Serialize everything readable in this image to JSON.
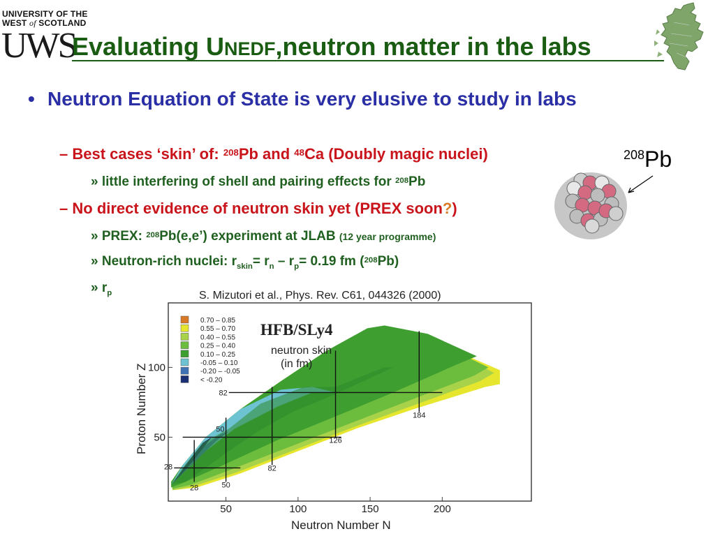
{
  "logo": {
    "line1": "UNIVERSITY OF THE",
    "line2_a": "WEST ",
    "line2_of": "of",
    "line2_b": " SCOTLAND",
    "mark": "UWS"
  },
  "title": "Evaluating U",
  "title_small": "NEDF",
  "title_rest": ",neutron matter in the labs",
  "bullets": {
    "b1": "Neutron Equation of State is very elusive to study in labs",
    "b2_dash": "–",
    "b2_a": "Best cases ‘skin’ of: ",
    "b2_sup1": "208",
    "b2_b": "Pb and ",
    "b2_sup2": "48",
    "b2_c": "Ca (Doubly magic nuclei)",
    "b3_mark": "»",
    "b3_a": "little interfering of shell and pairing effects for ",
    "b3_sup": "208",
    "b3_b": "Pb",
    "b4_dash": "–",
    "b4_a": "No direct evidence of neutron skin yet (PREX soon",
    "b4_q": "?",
    "b4_b": ")",
    "b5_mark": "»",
    "b5_a": "PREX: ",
    "b5_sup": "208",
    "b5_b": "Pb(e,e’) experiment at JLAB ",
    "b5_small": "(12 year programme)",
    "b6_mark": "»",
    "b6_a": "Neutron-rich nuclei: r",
    "b6_sub1": "skin",
    "b6_b": "= r",
    "b6_sub2": "n",
    "b6_c": " – r",
    "b6_sub3": "p",
    "b6_d": "= 0.19 fm (",
    "b6_sup": "208",
    "b6_e": "Pb)",
    "b7_mark": "»",
    "b7_a": "r",
    "b7_sub": "p"
  },
  "pb_label_sup": "208",
  "pb_label": "Pb",
  "figure": {
    "citation": "S. Mizutori et al., Phys. Rev. C61, 044326 (2000)",
    "model": "HFB/SLy4",
    "subtitle1": "neutron skin",
    "subtitle2": "(in fm)",
    "xlabel": "Neutron Number N",
    "ylabel": "Proton Number Z",
    "magic": {
      "n28": "28",
      "n50": "50",
      "n82": "82",
      "n126": "126",
      "n184": "184",
      "z28": "28",
      "z50": "50",
      "z82": "82"
    }
  },
  "chart_data": {
    "type": "heatmap",
    "xlabel": "Neutron Number N",
    "ylabel": "Proton Number Z",
    "xticks": [
      50,
      100,
      150,
      200
    ],
    "yticks": [
      50,
      100
    ],
    "xlim": [
      10,
      245
    ],
    "ylim": [
      5,
      140
    ],
    "legend_position": "top-left",
    "legend": [
      {
        "label": "0.70 – 0.85",
        "color": "#d97a26"
      },
      {
        "label": "0.55 – 0.70",
        "color": "#e6e62e"
      },
      {
        "label": "0.40 – 0.55",
        "color": "#a8d24a"
      },
      {
        "label": "0.25 – 0.40",
        "color": "#6cbd3e"
      },
      {
        "label": "0.10 – 0.25",
        "color": "#3e9e30"
      },
      {
        "label": "-0.05 – 0.10",
        "color": "#6ec3d2"
      },
      {
        "label": "-0.20 – -0.05",
        "color": "#3f73b5"
      },
      {
        "label": "< -0.20",
        "color": "#1b2f75"
      }
    ],
    "magic_numbers_N": [
      28,
      50,
      82,
      126,
      184
    ],
    "magic_numbers_Z": [
      28,
      50,
      82
    ]
  },
  "colors": {
    "title": "#1a5c12",
    "bullet1": "#2b2fa6",
    "bullet2": "#c8141a",
    "bullet3": "#1f5f1f",
    "pb_question": "#d97a26"
  }
}
